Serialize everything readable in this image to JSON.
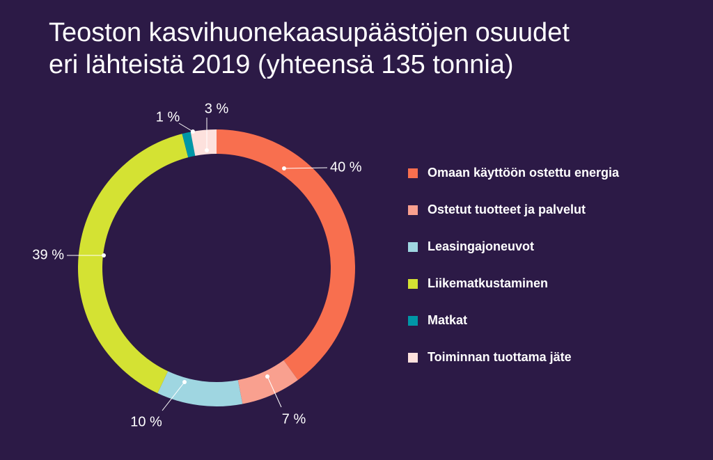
{
  "title": {
    "line1": "Teoston kasvihuonekaasupäästöjen osuudet",
    "line2": "eri lähteistä 2019 (yhteensä 135 tonnia)"
  },
  "chart_data": {
    "type": "pie",
    "variant": "donut",
    "unit": "%",
    "categories": [
      "Omaan käyttöön ostettu energia",
      "Ostetut tuotteet ja palvelut",
      "Leasingajoneuvot",
      "Liikematkustaminen",
      "Matkat",
      "Toiminnan tuottama jäte"
    ],
    "values": [
      40,
      7,
      10,
      39,
      1,
      3
    ],
    "value_labels": [
      "40 %",
      "7 %",
      "10 %",
      "39 %",
      "1 %",
      "3 %"
    ],
    "colors": [
      "#f86f4f",
      "#f9a08f",
      "#9fd6e1",
      "#d4e233",
      "#0097a7",
      "#fde1dd"
    ],
    "legend_position": "right"
  }
}
